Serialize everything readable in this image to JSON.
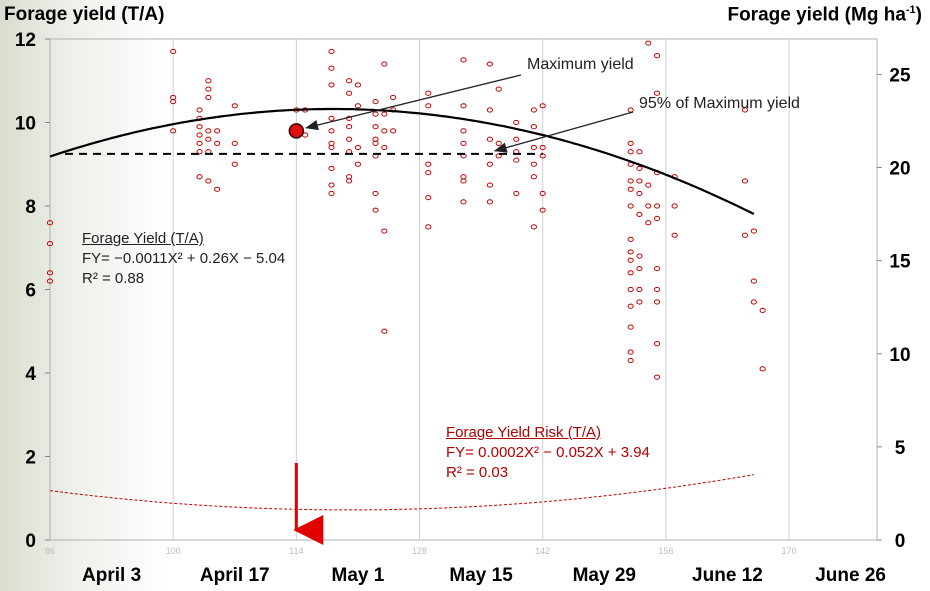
{
  "chart_data": {
    "type": "scatter",
    "y_left_label": "Forage yield (T/A)",
    "y_right_label_main": "Forage yield (Mg ha",
    "y_right_label_sup": "-1",
    "y_right_label_end": ")",
    "xlim": [
      86,
      180
    ],
    "ylim": [
      0,
      12
    ],
    "ylim_right": [
      0,
      26.9
    ],
    "yticks_left": [
      0,
      2,
      4,
      6,
      8,
      10,
      12
    ],
    "yticks_right": [
      0,
      5,
      10,
      15,
      20,
      25
    ],
    "xticks_minor": [
      86,
      100,
      114,
      128,
      142,
      156,
      170
    ],
    "date_labels": [
      {
        "x": 93,
        "label": "April 3"
      },
      {
        "x": 107,
        "label": "April 17"
      },
      {
        "x": 121,
        "label": "May 1"
      },
      {
        "x": 135,
        "label": "May 15"
      },
      {
        "x": 149,
        "label": "May 29"
      },
      {
        "x": 163,
        "label": "June 12"
      },
      {
        "x": 177,
        "label": "June 26"
      }
    ],
    "gridlines_x": [
      86,
      100,
      114,
      128,
      142,
      156,
      170
    ],
    "series": [
      {
        "kind": "points",
        "color": "#c00000",
        "points": [
          [
            86,
            7.6
          ],
          [
            86,
            7.1
          ],
          [
            86,
            6.4
          ],
          [
            86,
            6.2
          ],
          [
            100,
            11.7
          ],
          [
            100,
            10.6
          ],
          [
            100,
            10.5
          ],
          [
            100,
            9.8
          ],
          [
            103,
            10.3
          ],
          [
            103,
            10.1
          ],
          [
            103,
            9.9
          ],
          [
            103,
            9.7
          ],
          [
            103,
            9.5
          ],
          [
            103,
            9.3
          ],
          [
            103,
            8.7
          ],
          [
            104,
            11.0
          ],
          [
            104,
            10.8
          ],
          [
            104,
            10.6
          ],
          [
            104,
            9.8
          ],
          [
            104,
            9.6
          ],
          [
            104,
            9.3
          ],
          [
            104,
            8.6
          ],
          [
            105,
            9.8
          ],
          [
            105,
            9.5
          ],
          [
            105,
            8.4
          ],
          [
            107,
            10.4
          ],
          [
            107,
            9.5
          ],
          [
            107,
            9.0
          ],
          [
            114,
            9.8
          ],
          [
            114,
            10.3
          ],
          [
            115,
            9.7
          ],
          [
            115,
            10.3
          ],
          [
            118,
            10.1
          ],
          [
            118,
            9.8
          ],
          [
            118,
            9.5
          ],
          [
            118,
            9.4
          ],
          [
            118,
            8.9
          ],
          [
            118,
            8.5
          ],
          [
            118,
            8.3
          ],
          [
            118,
            11.7
          ],
          [
            118,
            11.3
          ],
          [
            118,
            10.9
          ],
          [
            120,
            11.0
          ],
          [
            120,
            10.7
          ],
          [
            120,
            10.1
          ],
          [
            120,
            9.9
          ],
          [
            120,
            9.6
          ],
          [
            120,
            9.3
          ],
          [
            120,
            8.7
          ],
          [
            120,
            8.6
          ],
          [
            121,
            10.9
          ],
          [
            121,
            10.4
          ],
          [
            121,
            9.4
          ],
          [
            121,
            9.0
          ],
          [
            123,
            10.5
          ],
          [
            123,
            10.2
          ],
          [
            123,
            9.9
          ],
          [
            123,
            9.6
          ],
          [
            123,
            9.5
          ],
          [
            123,
            9.2
          ],
          [
            123,
            8.3
          ],
          [
            123,
            7.9
          ],
          [
            124,
            11.4
          ],
          [
            124,
            10.2
          ],
          [
            124,
            9.8
          ],
          [
            124,
            9.4
          ],
          [
            124,
            7.4
          ],
          [
            124,
            5.0
          ],
          [
            125,
            10.6
          ],
          [
            125,
            10.3
          ],
          [
            125,
            9.8
          ],
          [
            129,
            10.7
          ],
          [
            129,
            10.4
          ],
          [
            129,
            9.0
          ],
          [
            129,
            8.8
          ],
          [
            129,
            8.2
          ],
          [
            129,
            7.5
          ],
          [
            133,
            11.5
          ],
          [
            133,
            10.4
          ],
          [
            133,
            9.8
          ],
          [
            133,
            9.5
          ],
          [
            133,
            9.2
          ],
          [
            133,
            8.7
          ],
          [
            133,
            8.6
          ],
          [
            133,
            8.1
          ],
          [
            136,
            11.4
          ],
          [
            136,
            10.3
          ],
          [
            136,
            9.6
          ],
          [
            136,
            9.0
          ],
          [
            136,
            8.5
          ],
          [
            136,
            8.1
          ],
          [
            137,
            10.8
          ],
          [
            137,
            9.5
          ],
          [
            137,
            9.2
          ],
          [
            139,
            10.0
          ],
          [
            139,
            9.6
          ],
          [
            139,
            9.3
          ],
          [
            139,
            9.1
          ],
          [
            139,
            8.3
          ],
          [
            141,
            10.3
          ],
          [
            141,
            9.9
          ],
          [
            141,
            9.4
          ],
          [
            141,
            9.0
          ],
          [
            141,
            8.7
          ],
          [
            141,
            7.5
          ],
          [
            142,
            10.4
          ],
          [
            142,
            9.4
          ],
          [
            142,
            9.2
          ],
          [
            142,
            8.3
          ],
          [
            142,
            7.9
          ],
          [
            152,
            10.3
          ],
          [
            152,
            9.5
          ],
          [
            152,
            9.3
          ],
          [
            152,
            9.0
          ],
          [
            152,
            8.6
          ],
          [
            152,
            8.4
          ],
          [
            152,
            8.0
          ],
          [
            152,
            7.2
          ],
          [
            152,
            6.9
          ],
          [
            152,
            6.7
          ],
          [
            152,
            6.4
          ],
          [
            152,
            6.0
          ],
          [
            152,
            5.6
          ],
          [
            152,
            5.1
          ],
          [
            152,
            4.5
          ],
          [
            152,
            4.3
          ],
          [
            153,
            9.3
          ],
          [
            153,
            8.9
          ],
          [
            153,
            8.6
          ],
          [
            153,
            8.3
          ],
          [
            153,
            7.8
          ],
          [
            153,
            6.8
          ],
          [
            153,
            6.5
          ],
          [
            153,
            6.0
          ],
          [
            153,
            5.7
          ],
          [
            154,
            11.9
          ],
          [
            154,
            8.5
          ],
          [
            154,
            8.0
          ],
          [
            154,
            7.6
          ],
          [
            155,
            11.6
          ],
          [
            155,
            10.7
          ],
          [
            155,
            8.8
          ],
          [
            155,
            8.0
          ],
          [
            155,
            7.7
          ],
          [
            155,
            6.5
          ],
          [
            155,
            6.0
          ],
          [
            155,
            5.7
          ],
          [
            155,
            4.7
          ],
          [
            155,
            3.9
          ],
          [
            157,
            8.7
          ],
          [
            157,
            8.0
          ],
          [
            157,
            7.3
          ],
          [
            165,
            10.3
          ],
          [
            165,
            8.6
          ],
          [
            165,
            7.3
          ],
          [
            166,
            6.2
          ],
          [
            166,
            5.7
          ],
          [
            166,
            7.4
          ],
          [
            167,
            5.5
          ],
          [
            167,
            4.1
          ]
        ]
      },
      {
        "kind": "curve",
        "name": "Forage Yield (T/A)",
        "color": "#000000",
        "equation": "FY= −0.0011X² + 0.26X − 5.04",
        "coefficients": {
          "a": -0.0011,
          "b": 0.26,
          "c": -5.04
        },
        "x_range": [
          86,
          166
        ],
        "r2": "R² = 0.88"
      },
      {
        "kind": "curve",
        "name": "Forage Yield Risk (T/A)",
        "color": "#c00000",
        "equation": "FY= 0.0002X² − 0.052X + 3.94",
        "x_range": [
          86,
          166
        ],
        "r2": "R² = 0.03"
      },
      {
        "kind": "hline",
        "name": "95% of Maximum yield",
        "y": 9.25,
        "x_range": [
          86,
          142
        ]
      }
    ],
    "max_point": {
      "x": 114,
      "y": 9.8
    },
    "arrow_x": 114,
    "annotations": {
      "max": "Maximum yield",
      "ninety_five": "95% of Maximum yield"
    }
  }
}
